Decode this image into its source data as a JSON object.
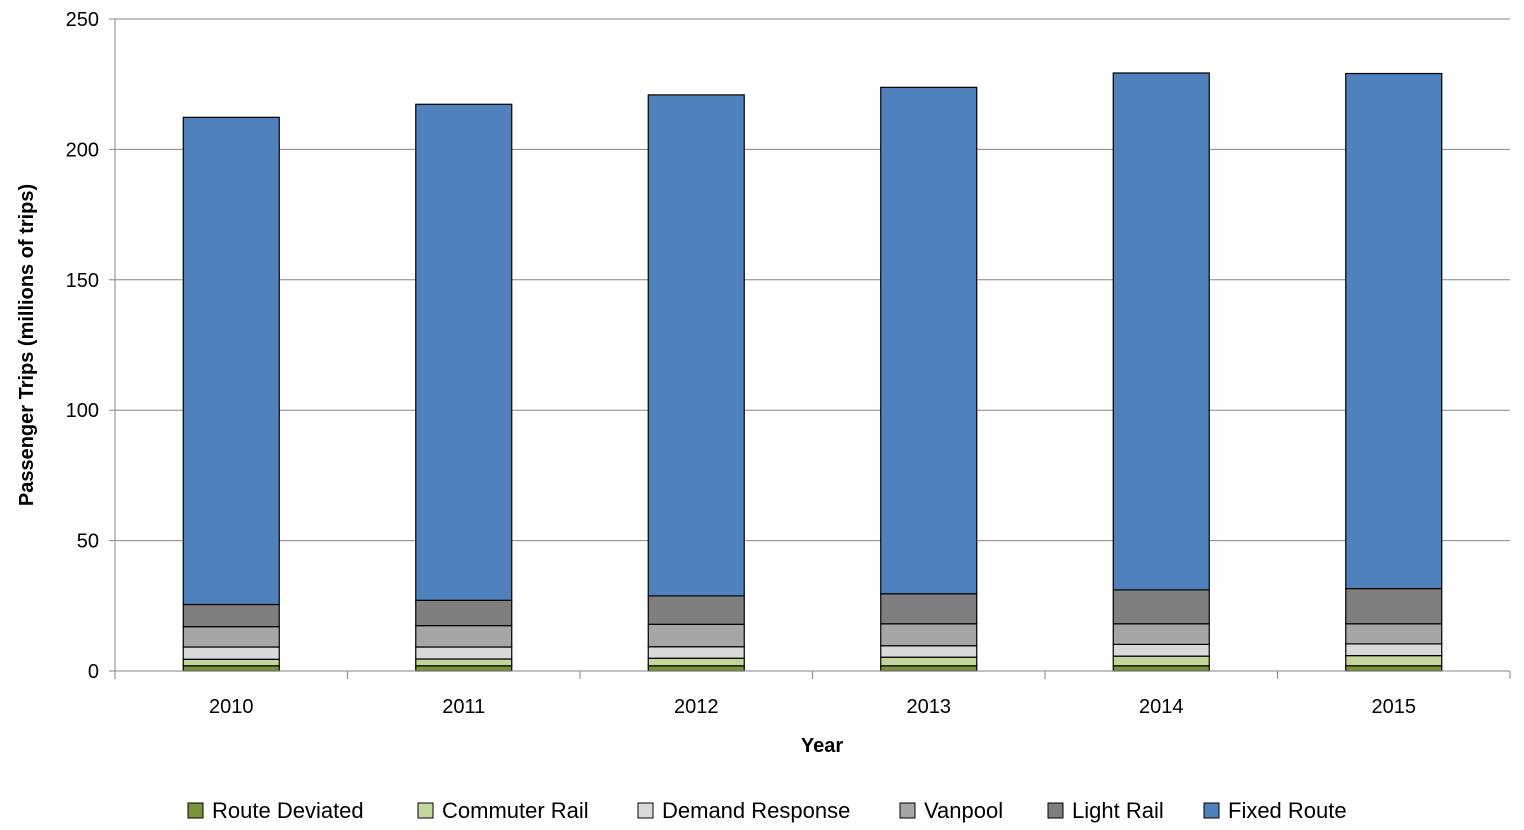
{
  "chart_data": {
    "type": "bar",
    "stacked": true,
    "categories": [
      "2010",
      "2011",
      "2012",
      "2013",
      "2014",
      "2015"
    ],
    "series": [
      {
        "name": "Route Deviated",
        "color": "#77933c",
        "values": [
          2,
          2,
          2,
          2,
          2,
          2
        ]
      },
      {
        "name": "Commuter Rail",
        "color": "#c3d69b",
        "values": [
          2.5,
          2.6,
          2.9,
          3.3,
          3.7,
          3.9
        ]
      },
      {
        "name": "Demand Response",
        "color": "#d9d9d9",
        "values": [
          4.7,
          4.6,
          4.4,
          4.4,
          4.5,
          4.5
        ]
      },
      {
        "name": "Vanpool",
        "color": "#a6a6a6",
        "values": [
          7.8,
          8.2,
          8.6,
          8.4,
          7.9,
          7.7
        ]
      },
      {
        "name": "Light Rail",
        "color": "#7f7f7f",
        "values": [
          8.5,
          9.7,
          10.9,
          11.5,
          13.0,
          13.5
        ]
      },
      {
        "name": "Fixed Route",
        "color": "#4f81bd",
        "values": [
          186.8,
          190.2,
          192.1,
          194.2,
          198.2,
          197.5
        ]
      }
    ],
    "xlabel": "Year",
    "ylabel": "Passenger Trips (millions of trips)",
    "ylim": [
      0,
      250
    ],
    "yticks": [
      "0",
      "50",
      "100",
      "150",
      "200",
      "250"
    ],
    "grid": true,
    "legend_position": "bottom"
  }
}
